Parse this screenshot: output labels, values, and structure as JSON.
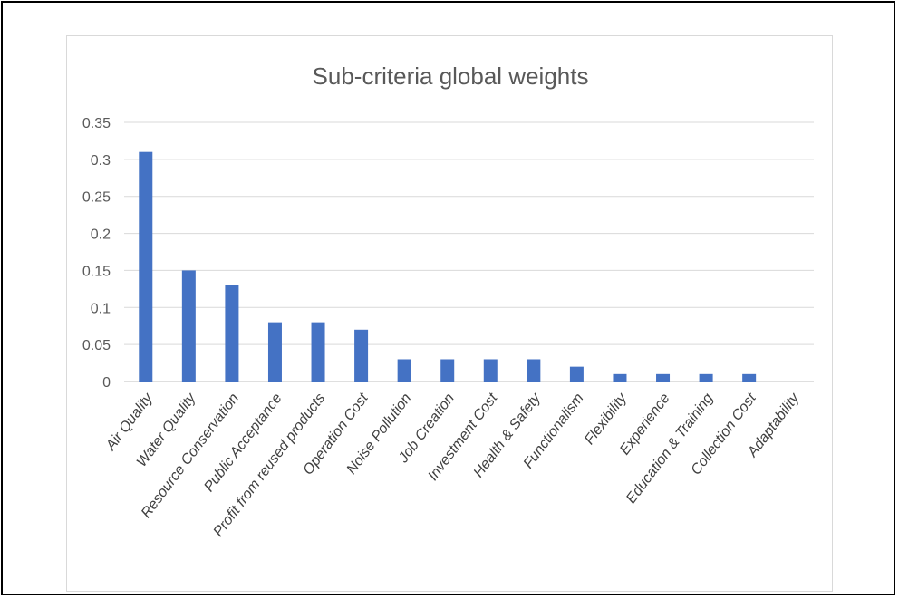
{
  "chart_data": {
    "type": "bar",
    "title": "Sub-criteria global weights",
    "xlabel": "",
    "ylabel": "",
    "ylim": [
      0,
      0.35
    ],
    "yticks": [
      0,
      0.05,
      0.1,
      0.15,
      0.2,
      0.25,
      0.3,
      0.35
    ],
    "ytick_labels": [
      "0",
      "0.05",
      "0.1",
      "0.15",
      "0.2",
      "0.25",
      "0.3",
      "0.35"
    ],
    "grid": true,
    "legend": "none",
    "bar_color": "#4472c4",
    "categories": [
      "Air Quality",
      "Water Quality",
      "Resource Conservation",
      "Public Acceptance",
      "Profit from reused products",
      "Operation Cost",
      "Noise Pollution",
      "Job Creation",
      "Investment Cost",
      "Health & Safety",
      "Functionalism",
      "Flexibility",
      "Experience",
      "Education & Training",
      "Collection Cost",
      "Adaptability"
    ],
    "values": [
      0.31,
      0.15,
      0.13,
      0.08,
      0.08,
      0.07,
      0.03,
      0.03,
      0.03,
      0.03,
      0.02,
      0.01,
      0.01,
      0.01,
      0.01,
      0
    ]
  }
}
